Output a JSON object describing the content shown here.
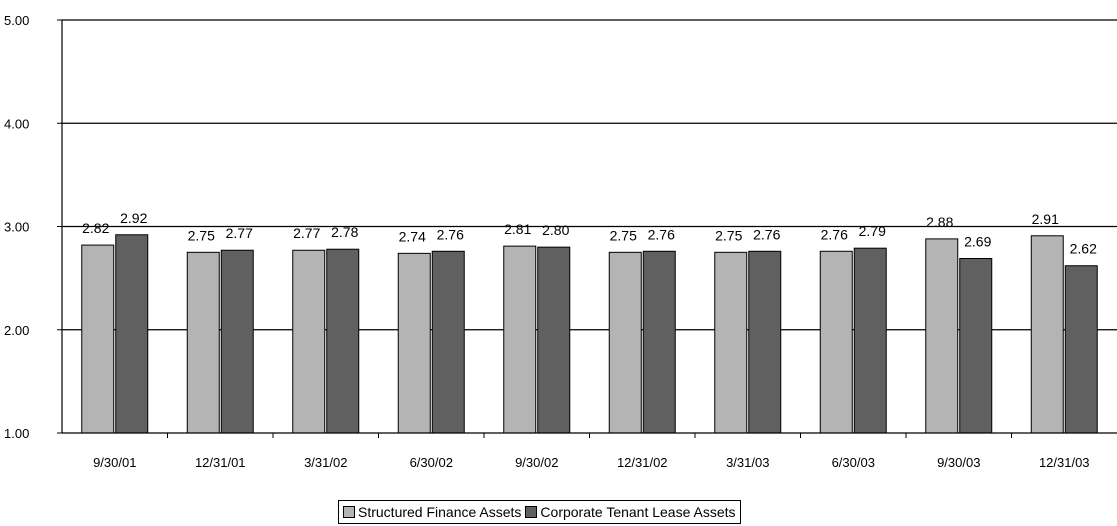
{
  "chart_data": {
    "type": "bar",
    "categories": [
      "9/30/01",
      "12/31/01",
      "3/31/02",
      "6/30/02",
      "9/30/02",
      "12/31/02",
      "3/31/03",
      "6/30/03",
      "9/30/03",
      "12/31/03"
    ],
    "series": [
      {
        "name": "Structured Finance Assets",
        "values": [
          2.82,
          2.75,
          2.77,
          2.74,
          2.81,
          2.75,
          2.75,
          2.76,
          2.88,
          2.91
        ],
        "labels": [
          "2.82",
          "2.75",
          "2.77",
          "2.74",
          "2.81",
          "2.75",
          "2.75",
          "2.76",
          "2.88",
          "2.91"
        ],
        "color": "#b4b4b4"
      },
      {
        "name": "Corporate Tenant Lease Assets",
        "values": [
          2.92,
          2.77,
          2.78,
          2.76,
          2.8,
          2.76,
          2.76,
          2.79,
          2.69,
          2.62
        ],
        "labels": [
          "2.92",
          "2.77",
          "2.78",
          "2.76",
          "2.80",
          "2.76",
          "2.76",
          "2.79",
          "2.69",
          "2.62"
        ],
        "color": "#606060"
      }
    ],
    "ylim": [
      1.0,
      5.0
    ],
    "yticks": [
      1.0,
      2.0,
      3.0,
      4.0,
      5.0
    ],
    "ytick_labels": [
      "1.00",
      "2.00",
      "3.00",
      "4.00",
      "5.00"
    ],
    "grid": true,
    "legend": "bottom"
  }
}
